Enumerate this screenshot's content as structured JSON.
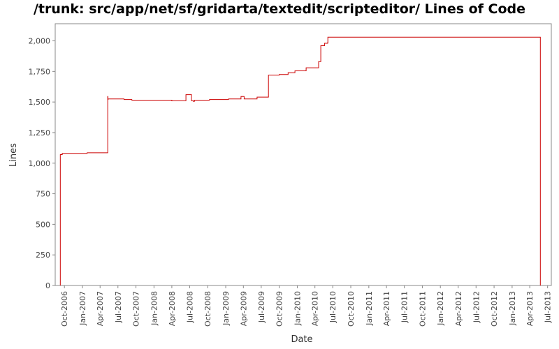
{
  "chart_data": {
    "type": "line",
    "title": "/trunk: src/app/net/sf/gridarta/textedit/scripteditor/ Lines of Code",
    "xlabel": "Date",
    "ylabel": "Lines",
    "x_tick_labels": [
      "Oct-2006",
      "Jan-2007",
      "Apr-2007",
      "Jul-2007",
      "Oct-2007",
      "Jan-2008",
      "Apr-2008",
      "Jul-2008",
      "Oct-2008",
      "Jan-2009",
      "Apr-2009",
      "Jul-2009",
      "Oct-2009",
      "Jan-2010",
      "Apr-2010",
      "Jul-2010",
      "Oct-2010",
      "Jan-2011",
      "Apr-2011",
      "Jul-2011",
      "Oct-2011",
      "Jan-2012",
      "Apr-2012",
      "Jul-2012",
      "Oct-2012",
      "Jan-2013",
      "Apr-2013",
      "Jul-2013"
    ],
    "y_tick_labels": [
      "0",
      "250",
      "500",
      "750",
      "1,000",
      "1,250",
      "1,500",
      "1,750",
      "2,000"
    ],
    "y_ticks": [
      0,
      250,
      500,
      750,
      1000,
      1250,
      1500,
      1750,
      2000
    ],
    "xlim": [
      "2006-08-15",
      "2013-07-20"
    ],
    "ylim": [
      0,
      2140
    ],
    "grid": false,
    "line_color": "#cc0000",
    "series": [
      {
        "step": true,
        "x": [
          "2006-09-10",
          "2006-09-10",
          "2006-09-20",
          "2007-01-25",
          "2007-05-10",
          "2007-05-11",
          "2007-05-12",
          "2007-08-01",
          "2007-09-10",
          "2007-09-10",
          "2008-01-01",
          "2008-04-01",
          "2008-06-12",
          "2008-07-10",
          "2008-07-20",
          "2008-07-25",
          "2008-10-10",
          "2009-01-15",
          "2009-03-20",
          "2009-04-05",
          "2009-06-10",
          "2009-08-05",
          "2009-08-07",
          "2009-10-01",
          "2009-11-15",
          "2009-12-20",
          "2010-02-15",
          "2010-04-12",
          "2010-04-20",
          "2010-05-01",
          "2010-05-20",
          "2010-06-05",
          "2010-06-06",
          "2013-05-25",
          "2013-05-25"
        ],
        "y": [
          0,
          1070,
          1080,
          1085,
          1545,
          1520,
          1525,
          1520,
          1515,
          1515,
          1515,
          1510,
          1560,
          1510,
          1505,
          1515,
          1520,
          1525,
          1545,
          1525,
          1540,
          1540,
          1720,
          1725,
          1740,
          1755,
          1780,
          1780,
          1830,
          1960,
          1980,
          1985,
          2030,
          2030,
          0
        ]
      }
    ]
  }
}
